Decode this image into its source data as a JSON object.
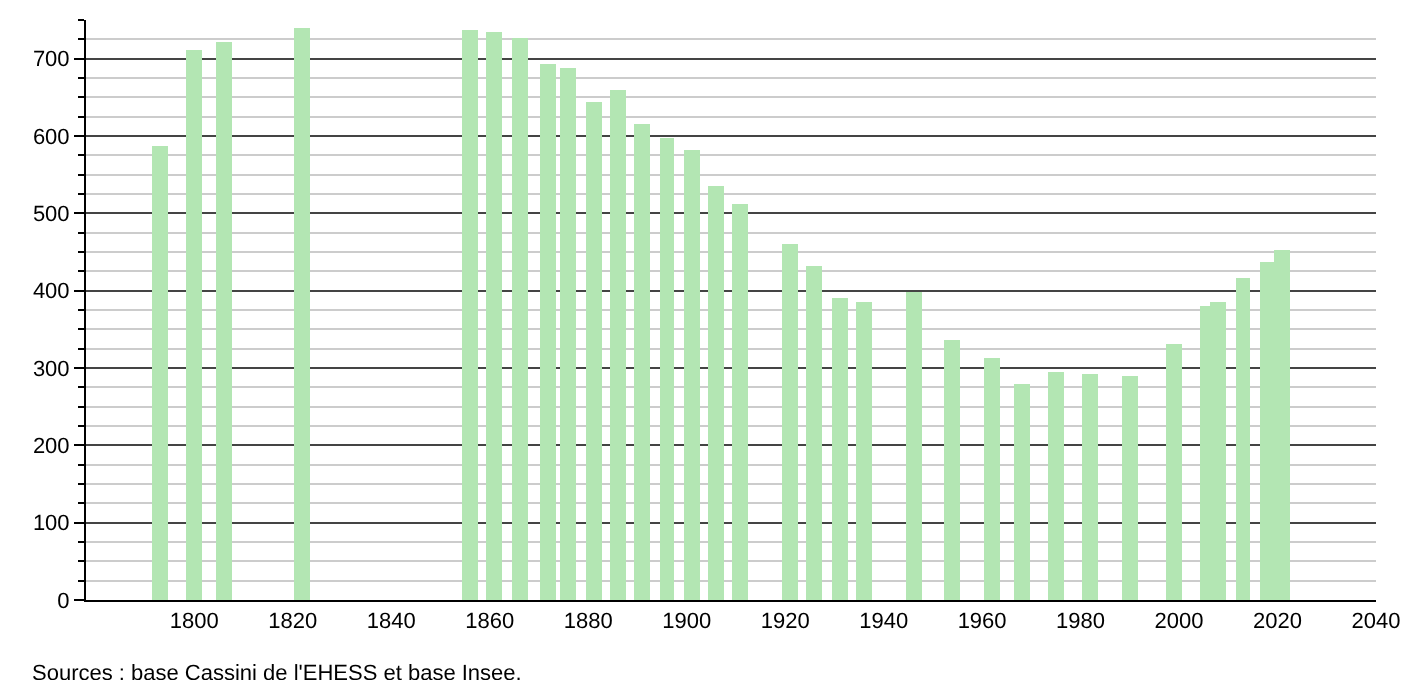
{
  "chart_data": {
    "type": "bar",
    "x": [
      1793,
      1800,
      1806,
      1822,
      1838,
      1848,
      1856,
      1861,
      1866,
      1872,
      1876,
      1881,
      1886,
      1891,
      1896,
      1901,
      1906,
      1911,
      1921,
      1926,
      1931,
      1936,
      1946,
      1954,
      1962,
      1968,
      1975,
      1982,
      1990,
      1999,
      2006,
      2008,
      2013,
      2018,
      2021
    ],
    "values": [
      587,
      711,
      721,
      740,
      null,
      null,
      737,
      734,
      726,
      693,
      689,
      644,
      659,
      615,
      598,
      582,
      535,
      511,
      460,
      431,
      390,
      385,
      399,
      335,
      312,
      279,
      294,
      291,
      289,
      330,
      379,
      385,
      416,
      436,
      452
    ],
    "color": "#b3e6b3",
    "xlim": [
      1778,
      2040
    ],
    "xticks": [
      1800,
      1820,
      1840,
      1860,
      1880,
      1900,
      1920,
      1940,
      1960,
      1980,
      2000,
      2020,
      2040
    ],
    "ylim": [
      0,
      750
    ],
    "yticks": [
      0,
      100,
      200,
      300,
      400,
      500,
      600,
      700
    ],
    "grid": "y",
    "annotations": [
      "Sources : base Cassini de l'EHESS et base Insee."
    ]
  }
}
